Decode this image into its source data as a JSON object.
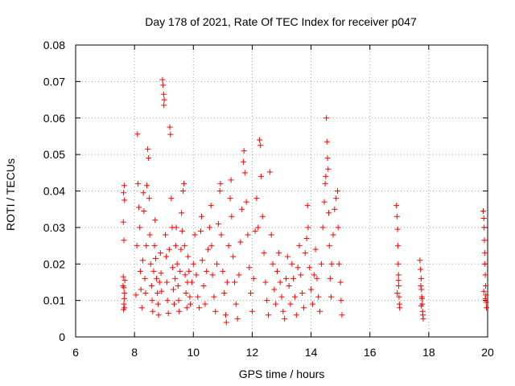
{
  "chart_data": {
    "type": "scatter",
    "title": "Day 178 of 2021, Rate Of TEC Index for receiver p047",
    "xlabel": "GPS time / hours",
    "ylabel": "ROTI / TECUs",
    "xlim": [
      6,
      20
    ],
    "ylim": [
      0,
      0.08
    ],
    "x_ticks": [
      6,
      8,
      10,
      12,
      14,
      16,
      18,
      20
    ],
    "x_tick_labels": [
      "6",
      "8",
      "10",
      "12",
      "14",
      "16",
      "18",
      "20"
    ],
    "y_ticks": [
      0,
      0.01,
      0.02,
      0.03,
      0.04,
      0.05,
      0.06,
      0.07,
      0.08
    ],
    "y_tick_labels": [
      "0",
      "0.01",
      "0.02",
      "0.03",
      "0.04",
      "0.05",
      "0.06",
      "0.07",
      "0.08"
    ],
    "grid": true,
    "marker": "+",
    "color": "#ff0000",
    "series": [
      {
        "name": "ROTI",
        "points": [
          [
            7.62,
            0.0165
          ],
          [
            7.64,
            0.0135
          ],
          [
            7.63,
            0.0075
          ],
          [
            7.66,
            0.008
          ],
          [
            7.65,
            0.0105
          ],
          [
            7.61,
            0.014
          ],
          [
            7.67,
            0.0155
          ],
          [
            7.64,
            0.0265
          ],
          [
            7.62,
            0.0315
          ],
          [
            7.66,
            0.0375
          ],
          [
            7.63,
            0.0395
          ],
          [
            7.65,
            0.0415
          ],
          [
            7.64,
            0.009
          ],
          [
            7.66,
            0.012
          ],
          [
            8.05,
            0.0115
          ],
          [
            8.08,
            0.025
          ],
          [
            8.1,
            0.0556
          ],
          [
            8.12,
            0.042
          ],
          [
            8.15,
            0.0355
          ],
          [
            8.18,
            0.03
          ],
          [
            8.2,
            0.018
          ],
          [
            8.22,
            0.013
          ],
          [
            8.25,
            0.008
          ],
          [
            8.28,
            0.021
          ],
          [
            8.3,
            0.0395
          ],
          [
            8.32,
            0.0345
          ],
          [
            8.35,
            0.016
          ],
          [
            8.38,
            0.012
          ],
          [
            8.4,
            0.025
          ],
          [
            8.42,
            0.0415
          ],
          [
            8.45,
            0.0515
          ],
          [
            8.48,
            0.049
          ],
          [
            8.5,
            0.038
          ],
          [
            8.52,
            0.028
          ],
          [
            8.55,
            0.02
          ],
          [
            8.58,
            0.014
          ],
          [
            8.6,
            0.01
          ],
          [
            8.62,
            0.007
          ],
          [
            8.65,
            0.018
          ],
          [
            8.68,
            0.025
          ],
          [
            8.7,
            0.032
          ],
          [
            8.72,
            0.0215
          ],
          [
            8.75,
            0.016
          ],
          [
            8.78,
            0.012
          ],
          [
            8.8,
            0.009
          ],
          [
            8.82,
            0.006
          ],
          [
            8.85,
            0.015
          ],
          [
            8.88,
            0.023
          ],
          [
            8.9,
            0.0175
          ],
          [
            8.92,
            0.0125
          ],
          [
            8.95,
            0.0705
          ],
          [
            8.97,
            0.069
          ],
          [
            8.99,
            0.0665
          ],
          [
            9.01,
            0.065
          ],
          [
            9.0,
            0.0635
          ],
          [
            9.05,
            0.028
          ],
          [
            9.08,
            0.022
          ],
          [
            9.1,
            0.015
          ],
          [
            9.12,
            0.01
          ],
          [
            9.15,
            0.0065
          ],
          [
            9.18,
            0.024
          ],
          [
            9.2,
            0.0575
          ],
          [
            9.22,
            0.0555
          ],
          [
            9.25,
            0.038
          ],
          [
            9.28,
            0.03
          ],
          [
            9.3,
            0.019
          ],
          [
            9.32,
            0.013
          ],
          [
            9.35,
            0.009
          ],
          [
            9.38,
            0.016
          ],
          [
            9.4,
            0.025
          ],
          [
            9.42,
            0.03
          ],
          [
            9.45,
            0.02
          ],
          [
            9.48,
            0.014
          ],
          [
            9.5,
            0.01
          ],
          [
            9.52,
            0.007
          ],
          [
            9.55,
            0.018
          ],
          [
            9.58,
            0.024
          ],
          [
            9.6,
            0.034
          ],
          [
            9.62,
            0.029
          ],
          [
            9.65,
            0.04
          ],
          [
            9.68,
            0.042
          ],
          [
            9.7,
            0.025
          ],
          [
            9.72,
            0.017
          ],
          [
            9.75,
            0.012
          ],
          [
            9.78,
            0.008
          ],
          [
            9.8,
            0.015
          ],
          [
            9.82,
            0.022
          ],
          [
            9.85,
            0.018
          ],
          [
            9.88,
            0.011
          ],
          [
            9.9,
            0.009
          ],
          [
            9.95,
            0.015
          ],
          [
            10.0,
            0.02
          ],
          [
            10.05,
            0.028
          ],
          [
            10.1,
            0.017
          ],
          [
            10.15,
            0.011
          ],
          [
            10.2,
            0.008
          ],
          [
            10.25,
            0.029
          ],
          [
            10.28,
            0.033
          ],
          [
            10.3,
            0.021
          ],
          [
            10.35,
            0.014
          ],
          [
            10.4,
            0.009
          ],
          [
            10.45,
            0.018
          ],
          [
            10.5,
            0.024
          ],
          [
            10.55,
            0.03
          ],
          [
            10.6,
            0.036
          ],
          [
            10.62,
            0.025
          ],
          [
            10.65,
            0.017
          ],
          [
            10.7,
            0.011
          ],
          [
            10.75,
            0.007
          ],
          [
            10.8,
            0.02
          ],
          [
            10.85,
            0.031
          ],
          [
            10.9,
            0.04
          ],
          [
            10.92,
            0.042
          ],
          [
            10.95,
            0.028
          ],
          [
            11.0,
            0.018
          ],
          [
            11.05,
            0.012
          ],
          [
            11.1,
            0.006
          ],
          [
            11.12,
            0.004
          ],
          [
            11.15,
            0.015
          ],
          [
            11.2,
            0.025
          ],
          [
            11.25,
            0.038
          ],
          [
            11.28,
            0.043
          ],
          [
            11.3,
            0.033
          ],
          [
            11.35,
            0.022
          ],
          [
            11.4,
            0.015
          ],
          [
            11.45,
            0.009
          ],
          [
            11.5,
            0.005
          ],
          [
            11.55,
            0.017
          ],
          [
            11.6,
            0.026
          ],
          [
            11.65,
            0.035
          ],
          [
            11.7,
            0.048
          ],
          [
            11.72,
            0.051
          ],
          [
            11.75,
            0.045
          ],
          [
            11.8,
            0.037
          ],
          [
            11.85,
            0.028
          ],
          [
            11.9,
            0.019
          ],
          [
            11.95,
            0.012
          ],
          [
            12.0,
            0.007
          ],
          [
            12.05,
            0.016
          ],
          [
            12.1,
            0.029
          ],
          [
            12.15,
            0.038
          ],
          [
            12.2,
            0.03
          ],
          [
            12.25,
            0.054
          ],
          [
            12.28,
            0.0525
          ],
          [
            12.3,
            0.044
          ],
          [
            12.35,
            0.033
          ],
          [
            12.4,
            0.023
          ],
          [
            12.45,
            0.015
          ],
          [
            12.5,
            0.01
          ],
          [
            12.55,
            0.006
          ],
          [
            12.6,
            0.0452
          ],
          [
            12.65,
            0.028
          ],
          [
            12.7,
            0.02
          ],
          [
            12.75,
            0.013
          ],
          [
            12.8,
            0.009
          ],
          [
            12.85,
            0.018
          ],
          [
            12.9,
            0.023
          ],
          [
            12.95,
            0.015
          ],
          [
            13.0,
            0.011
          ],
          [
            13.05,
            0.007
          ],
          [
            13.1,
            0.005
          ],
          [
            13.15,
            0.016
          ],
          [
            13.2,
            0.022
          ],
          [
            13.25,
            0.014
          ],
          [
            13.3,
            0.009
          ],
          [
            13.35,
            0.02
          ],
          [
            13.4,
            0.016
          ],
          [
            13.45,
            0.011
          ],
          [
            13.5,
            0.006
          ],
          [
            13.55,
            0.019
          ],
          [
            13.6,
            0.025
          ],
          [
            13.65,
            0.017
          ],
          [
            13.7,
            0.012
          ],
          [
            13.75,
            0.008
          ],
          [
            13.8,
            0.023
          ],
          [
            13.85,
            0.027
          ],
          [
            13.88,
            0.036
          ],
          [
            13.9,
            0.03
          ],
          [
            13.95,
            0.019
          ],
          [
            14.0,
            0.013
          ],
          [
            14.05,
            0.009
          ],
          [
            14.1,
            0.017
          ],
          [
            14.15,
            0.024
          ],
          [
            14.2,
            0.016
          ],
          [
            14.25,
            0.011
          ],
          [
            14.3,
            0.007
          ],
          [
            14.35,
            0.02
          ],
          [
            14.4,
            0.03
          ],
          [
            14.45,
            0.037
          ],
          [
            14.48,
            0.042
          ],
          [
            14.5,
            0.044
          ],
          [
            14.52,
            0.06
          ],
          [
            14.54,
            0.0535
          ],
          [
            14.56,
            0.049
          ],
          [
            14.58,
            0.046
          ],
          [
            14.6,
            0.034
          ],
          [
            14.62,
            0.025
          ],
          [
            14.65,
            0.016
          ],
          [
            14.68,
            0.011
          ],
          [
            14.7,
            0.02
          ],
          [
            14.75,
            0.028
          ],
          [
            14.8,
            0.035
          ],
          [
            14.85,
            0.038
          ],
          [
            14.9,
            0.04
          ],
          [
            14.92,
            0.03
          ],
          [
            14.95,
            0.02
          ],
          [
            15.0,
            0.015
          ],
          [
            15.02,
            0.01
          ],
          [
            15.05,
            0.006
          ],
          [
            16.9,
            0.036
          ],
          [
            16.92,
            0.033
          ],
          [
            16.94,
            0.0295
          ],
          [
            16.95,
            0.025
          ],
          [
            16.96,
            0.02
          ],
          [
            16.97,
            0.017
          ],
          [
            16.98,
            0.014
          ],
          [
            16.99,
            0.011
          ],
          [
            17.0,
            0.009
          ],
          [
            17.01,
            0.008
          ],
          [
            16.93,
            0.012
          ],
          [
            16.97,
            0.0155
          ],
          [
            17.7,
            0.021
          ],
          [
            17.72,
            0.0185
          ],
          [
            17.74,
            0.016
          ],
          [
            17.75,
            0.013
          ],
          [
            17.76,
            0.011
          ],
          [
            17.78,
            0.009
          ],
          [
            17.79,
            0.007
          ],
          [
            17.8,
            0.006
          ],
          [
            17.81,
            0.005
          ],
          [
            17.73,
            0.014
          ],
          [
            17.77,
            0.0105
          ],
          [
            17.74,
            0.0085
          ],
          [
            19.85,
            0.0345
          ],
          [
            19.87,
            0.0325
          ],
          [
            19.88,
            0.03
          ],
          [
            19.89,
            0.0265
          ],
          [
            19.9,
            0.023
          ],
          [
            19.91,
            0.02
          ],
          [
            19.92,
            0.017
          ],
          [
            19.93,
            0.014
          ],
          [
            19.94,
            0.0115
          ],
          [
            19.95,
            0.0095
          ],
          [
            19.96,
            0.008
          ],
          [
            19.87,
            0.0125
          ],
          [
            19.92,
            0.0105
          ]
        ]
      }
    ]
  }
}
